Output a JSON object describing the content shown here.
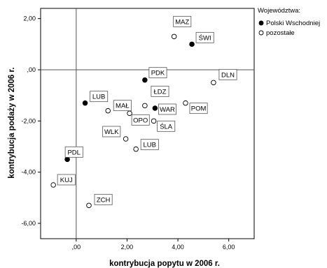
{
  "chart_data": {
    "type": "scatter",
    "xlabel": "kontrybucja popytu w 2006 r.",
    "ylabel": "kontrybucja podaży w 2006 r.",
    "xlim": [
      -1.4,
      7.0
    ],
    "ylim": [
      -6.6,
      2.4
    ],
    "x_ticks": [
      0,
      2,
      4,
      6
    ],
    "x_tick_labels": [
      ",00",
      "2,00",
      "4,00",
      "6,00"
    ],
    "y_ticks": [
      2,
      0,
      -2,
      -4,
      -6
    ],
    "y_tick_labels": [
      "2,00",
      ",00",
      "-2,00",
      "-4,00",
      "-6,00"
    ],
    "reference_lines": {
      "x": 0,
      "y": 0
    },
    "grid": false,
    "legend": {
      "title": "Województwa:",
      "position": "top-right",
      "entries": [
        {
          "label": "Polski Wschodniej",
          "marker": "filled-circle"
        },
        {
          "label": "pozostałe",
          "marker": "open-circle"
        }
      ]
    },
    "series": [
      {
        "name": "Polski Wschodniej",
        "marker": "filled-circle",
        "points": [
          {
            "label": "ŚWI",
            "x": 4.55,
            "y": 1.0
          },
          {
            "label": "PDK",
            "x": 2.7,
            "y": -0.4
          },
          {
            "label": "LUB",
            "x": 0.35,
            "y": -1.3
          },
          {
            "label": "WAR",
            "x": 3.1,
            "y": -1.5
          },
          {
            "label": "PDL",
            "x": -0.35,
            "y": -3.5
          }
        ]
      },
      {
        "name": "pozostałe",
        "marker": "open-circle",
        "points": [
          {
            "label": "MAZ",
            "x": 3.85,
            "y": 1.3
          },
          {
            "label": "DLN",
            "x": 5.4,
            "y": -0.5
          },
          {
            "label": "ŁDZ",
            "x": 2.7,
            "y": -1.4
          },
          {
            "label": "POM",
            "x": 4.3,
            "y": -1.3
          },
          {
            "label": "MAŁ",
            "x": 1.25,
            "y": -1.6
          },
          {
            "label": "OPO",
            "x": 2.1,
            "y": -1.7
          },
          {
            "label": "ŚLA",
            "x": 3.05,
            "y": -2.0
          },
          {
            "label": "WLK",
            "x": 1.95,
            "y": -2.7
          },
          {
            "label": "LUB",
            "x": 2.35,
            "y": -3.1
          },
          {
            "label": "KUJ",
            "x": -0.9,
            "y": -4.5
          },
          {
            "label": "ZCH",
            "x": 0.5,
            "y": -5.3
          }
        ]
      }
    ]
  }
}
